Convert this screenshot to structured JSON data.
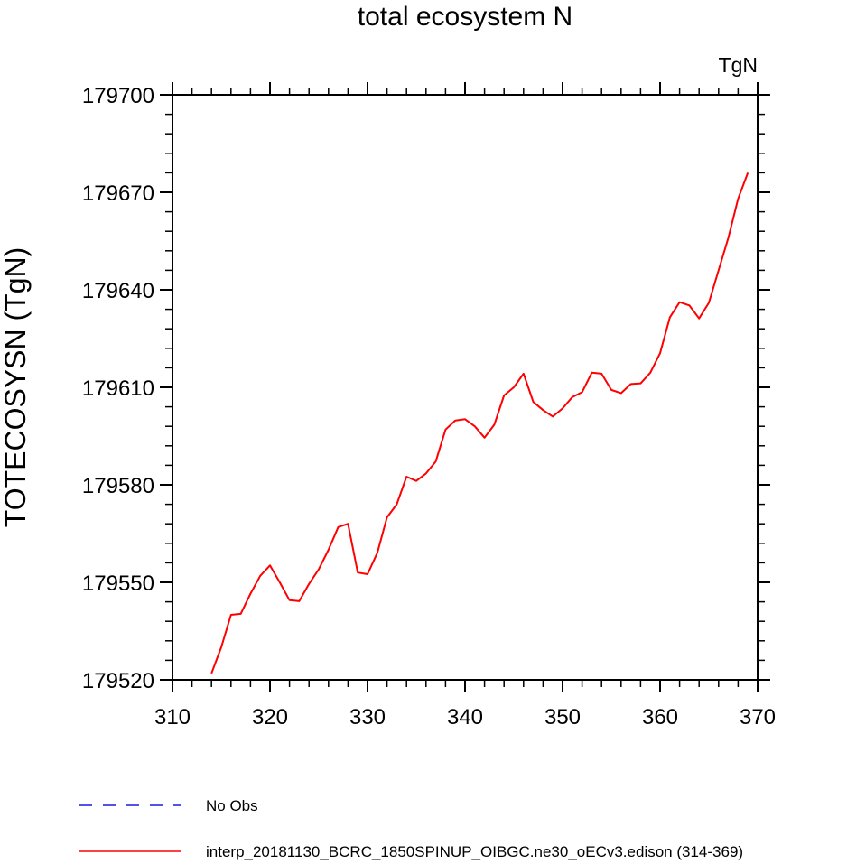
{
  "chart_data": {
    "type": "line",
    "title": "total ecosystem N",
    "units_label": "TgN",
    "xlabel": "",
    "ylabel": "TOTECOSYSN  (TgN)",
    "xlim": [
      310,
      370
    ],
    "ylim": [
      179520,
      179700
    ],
    "x_ticks": [
      310,
      320,
      330,
      340,
      350,
      360,
      370
    ],
    "y_ticks": [
      179520,
      179550,
      179580,
      179610,
      179640,
      179670,
      179700
    ],
    "x_minor_step": 2,
    "y_minor_step": 6,
    "grid": false,
    "series": [
      {
        "name": "No Obs",
        "color": "#1a1ae6",
        "dash": true,
        "x": [],
        "values": []
      },
      {
        "name": "interp_20181130_BCRC_1850SPINUP_OIBGC.ne30_oECv3.edison (314-369)",
        "color": "#ff0000",
        "dash": false,
        "x": [
          314,
          315,
          316,
          317,
          318,
          319,
          320,
          321,
          322,
          323,
          324,
          325,
          326,
          327,
          328,
          329,
          330,
          331,
          332,
          333,
          334,
          335,
          336,
          337,
          338,
          339,
          340,
          341,
          342,
          343,
          344,
          345,
          346,
          347,
          348,
          349,
          350,
          351,
          352,
          353,
          354,
          355,
          356,
          357,
          358,
          359,
          360,
          361,
          362,
          363,
          364,
          365,
          366,
          367,
          368,
          369
        ],
        "values": [
          179522,
          179530,
          179540,
          179540.3,
          179546.5,
          179552,
          179555.2,
          179550,
          179544.5,
          179544.2,
          179549.5,
          179554,
          179560,
          179567,
          179568,
          179553,
          179552.5,
          179559,
          179570,
          179574,
          179582.5,
          179581.2,
          179583.5,
          179587.2,
          179597,
          179599.8,
          179600.2,
          179598,
          179594.5,
          179598.5,
          179607.5,
          179610,
          179614.2,
          179605.5,
          179603,
          179601,
          179603.5,
          179607,
          179608.5,
          179614.5,
          179614.2,
          179609.2,
          179608.2,
          179611,
          179611.2,
          179614.5,
          179620.5,
          179631.5,
          179636.2,
          179635.2,
          179631.2,
          179636,
          179646,
          179656,
          179668,
          179676
        ]
      }
    ],
    "legend": "bottom"
  }
}
